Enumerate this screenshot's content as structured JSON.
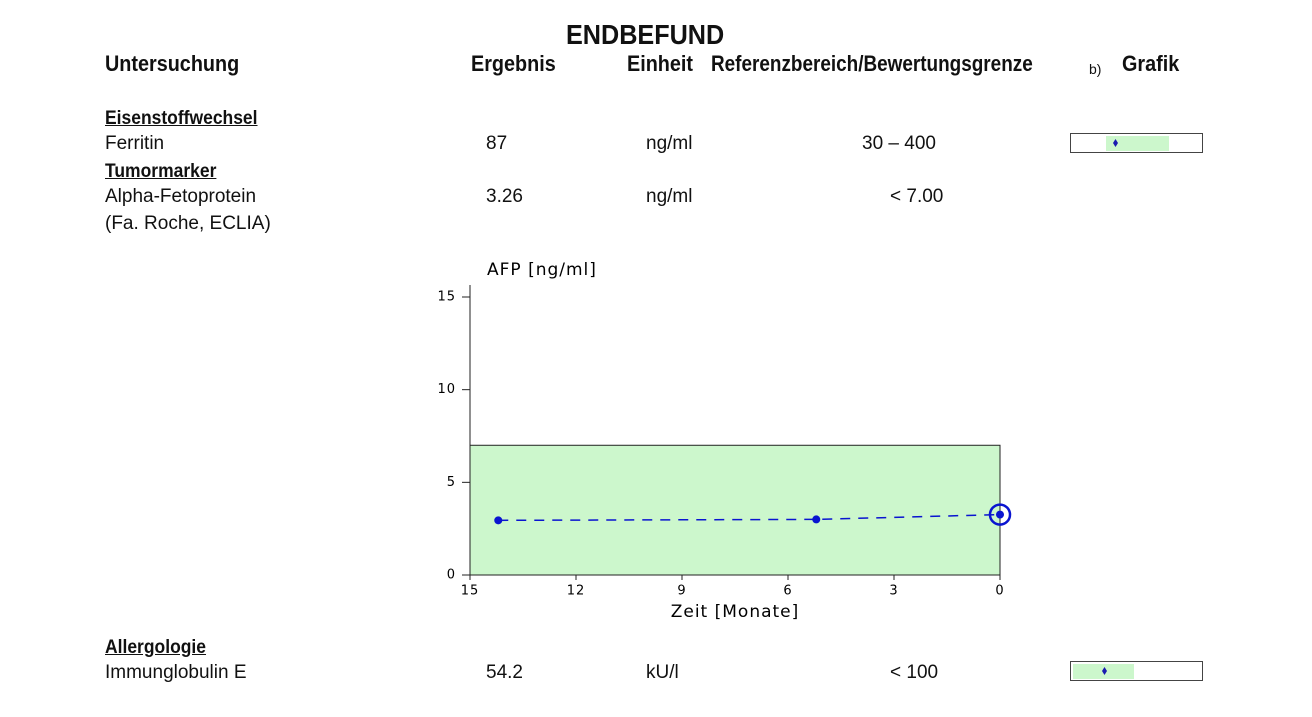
{
  "header": {
    "title": "ENDBEFUND",
    "columns": [
      "Untersuchung",
      "Ergebnis",
      "Einheit",
      "Referenzbereich/Bewertungsgrenze",
      "b)",
      "Grafik"
    ]
  },
  "sections": [
    {
      "title": "Eisenstoffwechsel",
      "rows": [
        {
          "name": "Ferritin",
          "result": 87,
          "unit": "ng/ml",
          "reference": "30 – 400"
        }
      ]
    },
    {
      "title": "Tumormarker",
      "rows": [
        {
          "name": "Alpha-Fetoprotein",
          "note": "(Fa. Roche, ECLIA)",
          "result": 3.26,
          "unit": "ng/ml",
          "reference": "< 7.00"
        }
      ]
    },
    {
      "title": "Allergologie",
      "rows": [
        {
          "name": "Immunglobulin E",
          "result": 54.2,
          "unit": "kU/l",
          "reference": "< 100"
        }
      ]
    }
  ],
  "chart_data": {
    "type": "line",
    "title": "AFP [ng/ml]",
    "x_label": "Zeit [Monate]",
    "x": [
      14.2,
      5.2,
      0
    ],
    "values": [
      2.95,
      3.0,
      3.26
    ],
    "color": "#0a14d0",
    "reference_range": [
      0,
      7
    ],
    "reference_color": "#ccf7cc",
    "xlim": [
      15,
      0
    ],
    "xticks": [
      15,
      12,
      9,
      6,
      3,
      0
    ],
    "ylim": [
      0,
      15
    ],
    "yticks": [
      0,
      5,
      10,
      15
    ]
  }
}
